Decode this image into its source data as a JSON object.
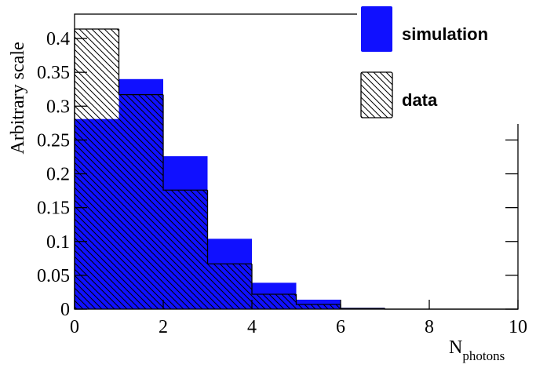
{
  "chart_data": {
    "type": "histogram",
    "ylabel": "Arbitrary scale",
    "xlabel": "N",
    "xlabel_subscript": "photons",
    "bins": [
      0,
      1,
      2,
      3,
      4,
      5,
      6,
      7,
      8,
      9,
      10
    ],
    "series": [
      {
        "name": "simulation",
        "color": "#1010ff",
        "fill": "solid",
        "values": [
          0.281,
          0.34,
          0.226,
          0.104,
          0.039,
          0.014,
          0.002,
          0,
          0,
          0
        ]
      },
      {
        "name": "data",
        "color": "#000000",
        "fill": "hatch",
        "values": [
          0.414,
          0.317,
          0.176,
          0.067,
          0.022,
          0.007,
          0.001,
          0,
          0,
          0
        ]
      }
    ],
    "xlim": [
      0,
      10
    ],
    "xticks": [
      0,
      2,
      4,
      6,
      8,
      10
    ],
    "ylim": [
      0,
      0.436
    ],
    "yticks": [
      0,
      0.05,
      0.1,
      0.15,
      0.2,
      0.25,
      0.3,
      0.35,
      0.4
    ]
  }
}
